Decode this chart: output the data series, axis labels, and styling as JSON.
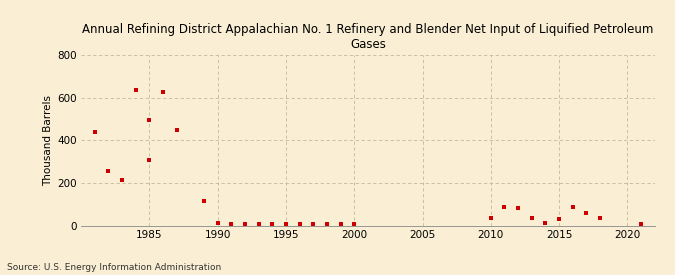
{
  "title": "Annual Refining District Appalachian No. 1 Refinery and Blender Net Input of Liquified Petroleum\nGases",
  "ylabel": "Thousand Barrels",
  "source": "Source: U.S. Energy Information Administration",
  "background_color": "#faefd4",
  "marker_color": "#cc0000",
  "xlim": [
    1980,
    2022
  ],
  "ylim": [
    0,
    800
  ],
  "yticks": [
    0,
    200,
    400,
    600,
    800
  ],
  "xticks": [
    1985,
    1990,
    1995,
    2000,
    2005,
    2010,
    2015,
    2020
  ],
  "data": [
    [
      1981,
      440
    ],
    [
      1982,
      255
    ],
    [
      1983,
      215
    ],
    [
      1984,
      635
    ],
    [
      1985,
      495
    ],
    [
      1985,
      305
    ],
    [
      1986,
      625
    ],
    [
      1987,
      450
    ],
    [
      1989,
      115
    ],
    [
      1990,
      10
    ],
    [
      1991,
      5
    ],
    [
      1992,
      5
    ],
    [
      1993,
      5
    ],
    [
      1994,
      5
    ],
    [
      1995,
      5
    ],
    [
      1996,
      5
    ],
    [
      1997,
      5
    ],
    [
      1998,
      5
    ],
    [
      1999,
      5
    ],
    [
      2000,
      5
    ],
    [
      2010,
      35
    ],
    [
      2011,
      85
    ],
    [
      2012,
      80
    ],
    [
      2013,
      35
    ],
    [
      2014,
      10
    ],
    [
      2015,
      30
    ],
    [
      2016,
      85
    ],
    [
      2017,
      60
    ],
    [
      2018,
      35
    ],
    [
      2021,
      5
    ]
  ]
}
